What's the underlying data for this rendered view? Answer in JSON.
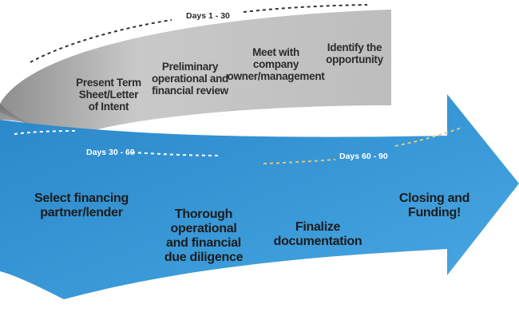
{
  "phases": {
    "top": "Days 1 - 30",
    "middle": "Days  30 - 60",
    "right": "Days  60 - 90"
  },
  "top_steps": [
    "Identify the\nopportunity",
    "Meet with\ncompany\nowner/management",
    "Preliminary\noperational and\nfinancial review",
    "Present Term\nSheet/Letter\nof Intent"
  ],
  "bottom_steps": [
    "Select financing\npartner/lender",
    "Thorough\noperational\nand financial\ndue diligence",
    "Finalize\ndocumentation",
    "Closing and\nFunding!"
  ],
  "colors": {
    "grey_band": "#b3b3b3",
    "blue_band": "#2f8fd0",
    "dashes_dark": "#333333",
    "dashes_light": "#ffffff",
    "dashes_gold": "#d9c98c"
  }
}
